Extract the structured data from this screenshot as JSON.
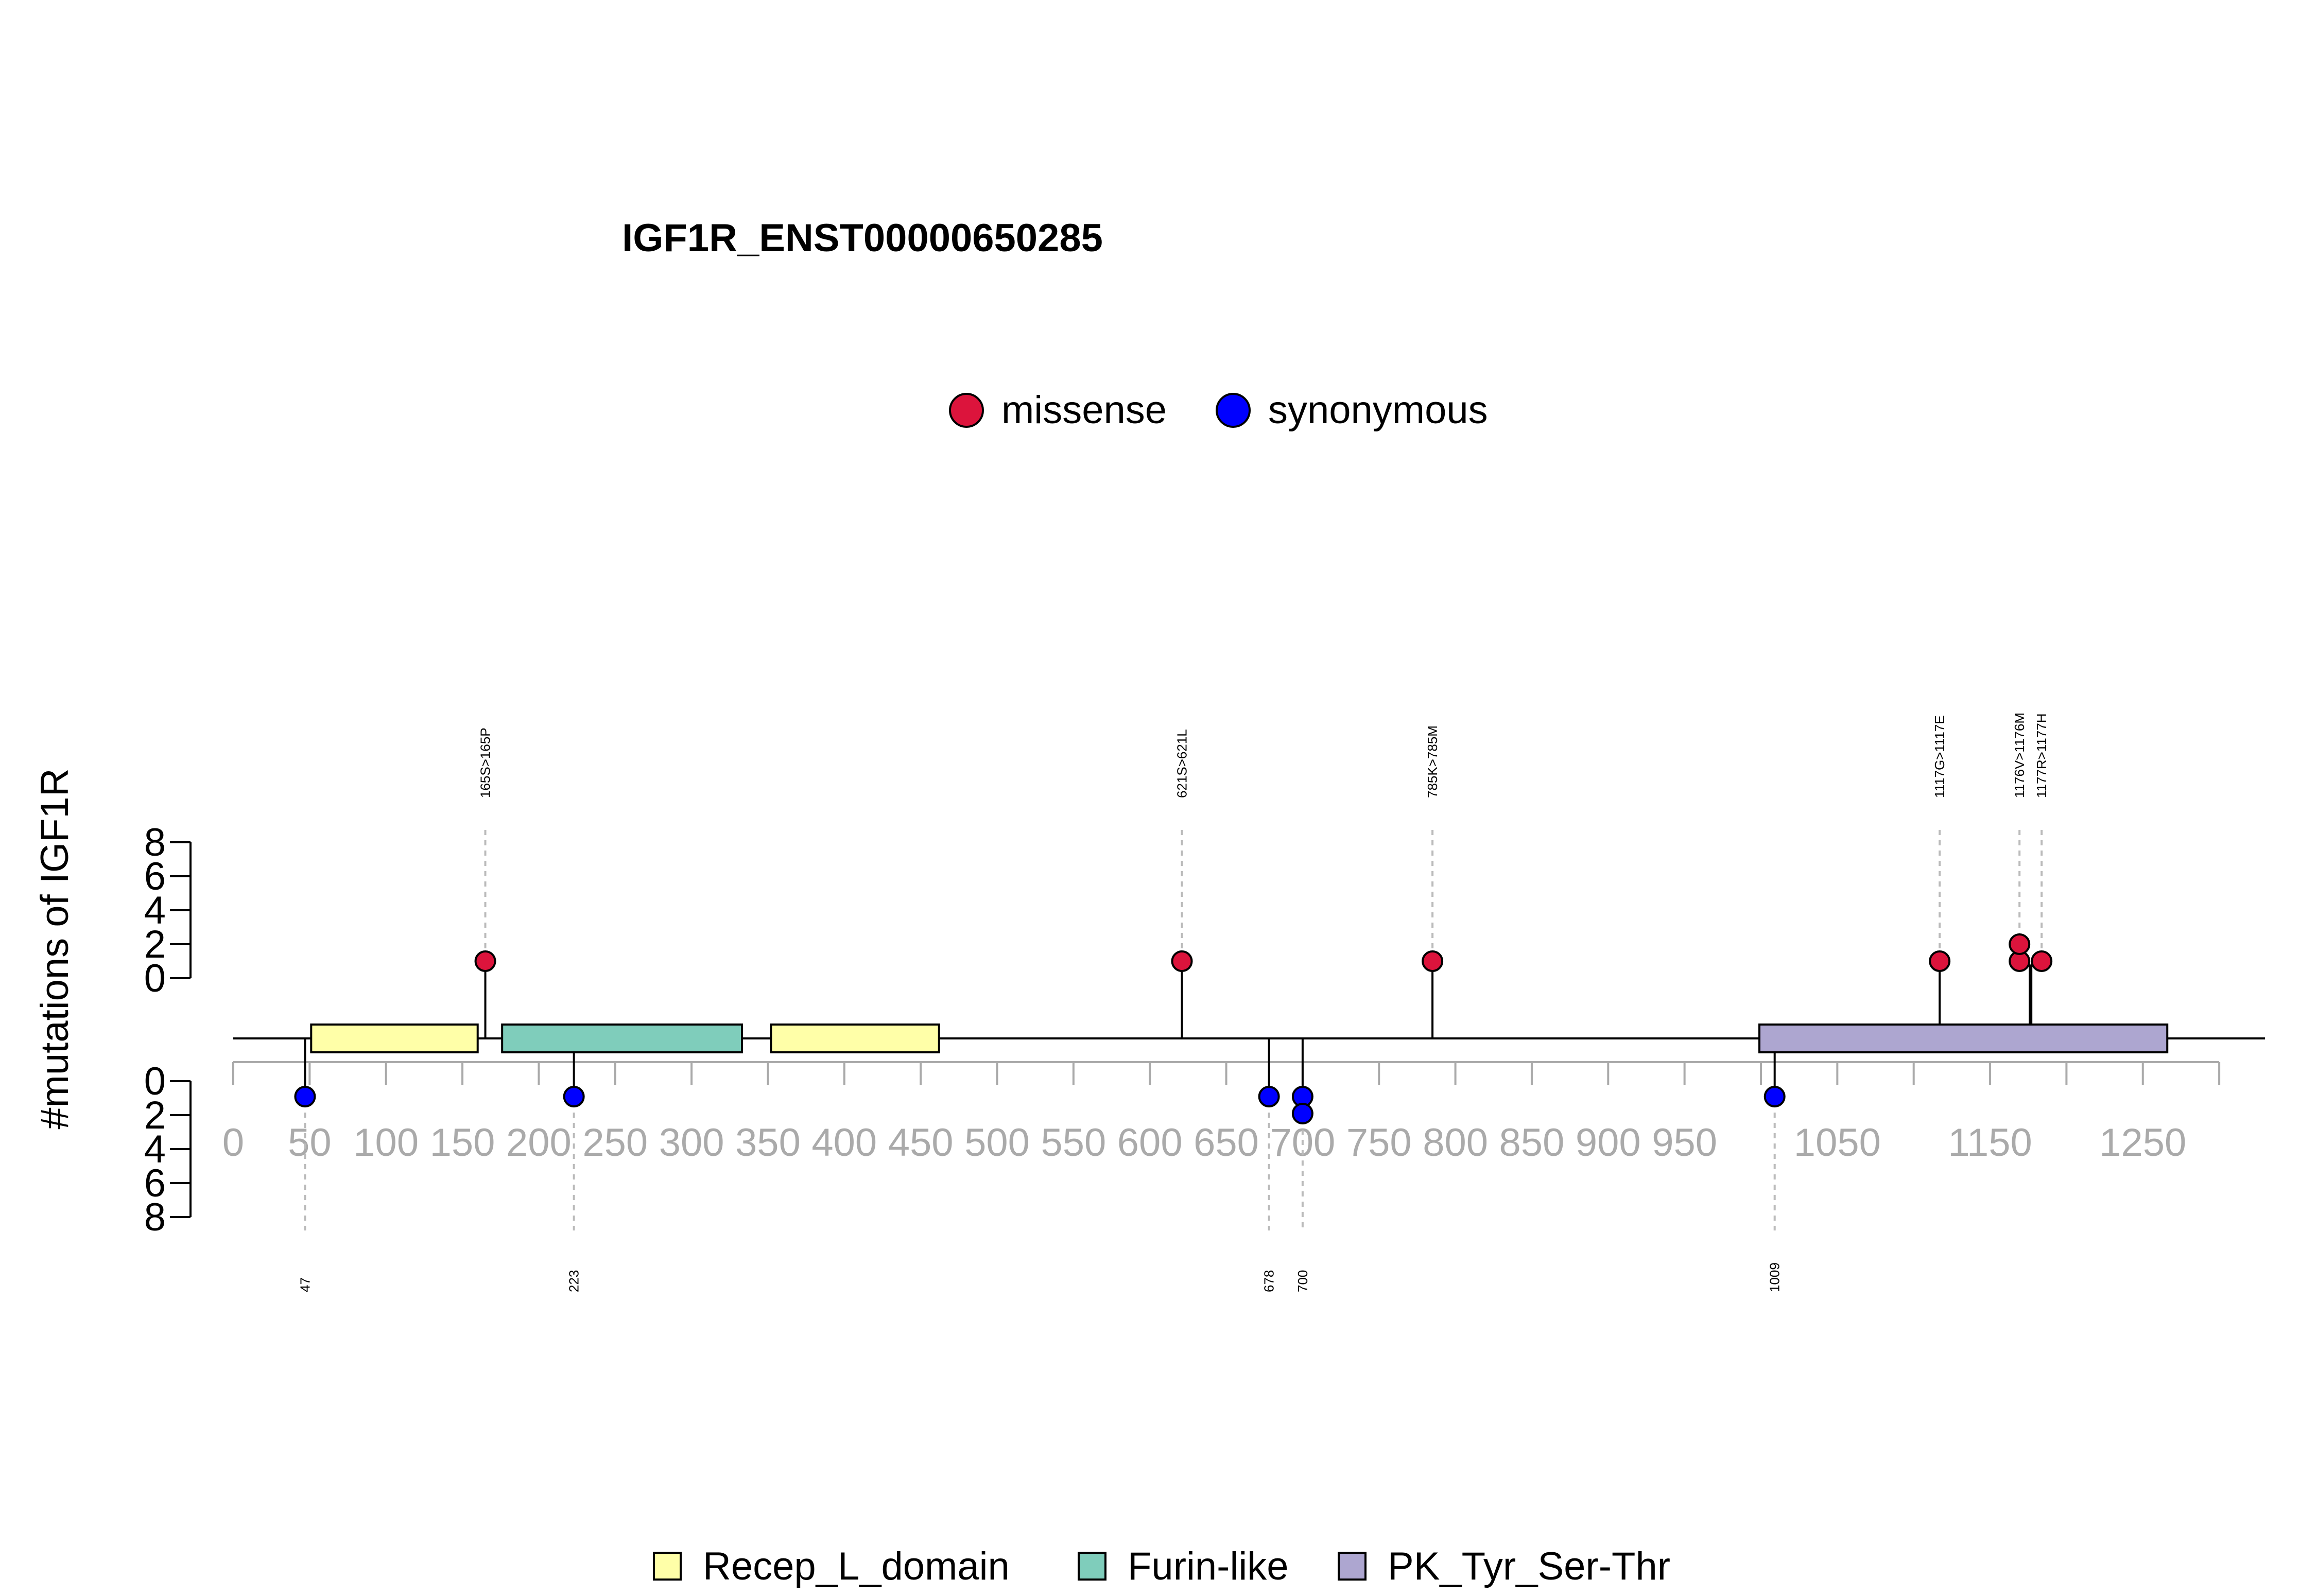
{
  "chart_data": {
    "type": "lollipop",
    "title": "IGF1R_ENST00000650285",
    "ylabel": "#mutations of IGF1R",
    "xlim": [
      0,
      1300
    ],
    "ylim_top": [
      0,
      8
    ],
    "ylim_bottom": [
      0,
      8
    ],
    "x_ticks": [
      0,
      50,
      100,
      150,
      200,
      250,
      300,
      350,
      400,
      450,
      500,
      550,
      600,
      650,
      700,
      750,
      800,
      850,
      900,
      950,
      1000,
      1050,
      1100,
      1150,
      1200,
      1250,
      1300
    ],
    "x_tick_labels": [
      "0",
      "50",
      "100",
      "150",
      "200",
      "250",
      "300",
      "350",
      "400",
      "450",
      "500",
      "550",
      "600",
      "650",
      "700",
      "750",
      "800",
      "850",
      "900",
      "950",
      "",
      "1050",
      "",
      "1150",
      "",
      "1250",
      ""
    ],
    "y_ticks_top": [
      "0",
      "2",
      "4",
      "6",
      "8"
    ],
    "y_ticks_bottom": [
      "0",
      "2",
      "4",
      "6",
      "8"
    ],
    "legend_top": [
      {
        "label": "missense",
        "color": "#DC143C"
      },
      {
        "label": "synonymous",
        "color": "#0000FF"
      }
    ],
    "legend_bottom": [
      {
        "label": "Recep_L_domain",
        "color": "#FFFFA8"
      },
      {
        "label": "Furin-like",
        "color": "#7FCDBB"
      },
      {
        "label": "PK_Tyr_Ser-Thr",
        "color": "#ADA6D0"
      }
    ],
    "domains": [
      {
        "name": "Recep_L_domain",
        "start": 51,
        "end": 160,
        "color": "#FFFFA8"
      },
      {
        "name": "Furin-like",
        "start": 176,
        "end": 333,
        "color": "#7FCDBB"
      },
      {
        "name": "Recep_L_domain",
        "start": 352,
        "end": 462,
        "color": "#FFFFA8"
      },
      {
        "name": "PK_Tyr_Ser-Thr",
        "start": 999,
        "end": 1266,
        "color": "#ADA6D0"
      }
    ],
    "missense": [
      {
        "pos": 165,
        "label": "165S>165P",
        "count": 1
      },
      {
        "pos": 621,
        "label": "621S>621L",
        "count": 1
      },
      {
        "pos": 785,
        "label": "785K>785M",
        "count": 1
      },
      {
        "pos": 1117,
        "label": "1117G>1117E",
        "count": 1
      },
      {
        "pos": 1176,
        "label": "1176V>1176M",
        "count": 2
      },
      {
        "pos": 1177,
        "label": "1177R>1177H",
        "count": 1
      }
    ],
    "synonymous": [
      {
        "pos": 47,
        "label": "47",
        "count": 1
      },
      {
        "pos": 223,
        "label": "223",
        "count": 1
      },
      {
        "pos": 678,
        "label": "678",
        "count": 1
      },
      {
        "pos": 700,
        "label": "700",
        "count": 2
      },
      {
        "pos": 1009,
        "label": "1009",
        "count": 1
      }
    ]
  }
}
